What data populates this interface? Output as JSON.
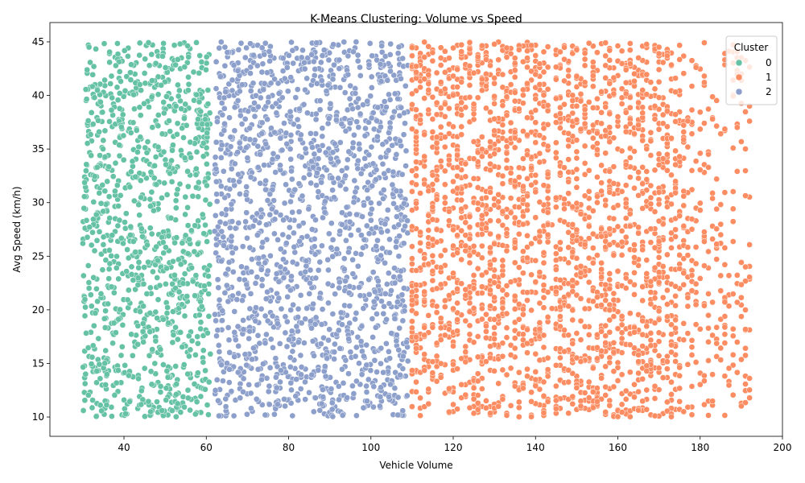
{
  "chart_data": {
    "type": "scatter",
    "title": "K-Means Clustering: Volume vs Speed",
    "xlabel": "Vehicle Volume",
    "ylabel": "Avg Speed (km/h)",
    "xlim": [
      22,
      200
    ],
    "ylim": [
      8.2,
      46.8
    ],
    "xticks": [
      40,
      60,
      80,
      100,
      120,
      140,
      160,
      180,
      200
    ],
    "yticks": [
      10,
      15,
      20,
      25,
      30,
      35,
      40,
      45
    ],
    "grid": false,
    "legend": {
      "title": "Cluster",
      "placement": "top-right"
    },
    "series": [
      {
        "name": "0",
        "color": "#66c2a5",
        "x_range": [
          30,
          61
        ],
        "y_range": [
          10,
          45
        ]
      },
      {
        "name": "2",
        "color": "#8da0cb",
        "x_range": [
          62,
          109
        ],
        "y_range": [
          10,
          45
        ]
      },
      {
        "name": "1",
        "color": "#fc8d62",
        "x_range": [
          110,
          192
        ],
        "y_range": [
          10,
          45
        ]
      }
    ],
    "legend_order": [
      "0",
      "1",
      "2"
    ]
  }
}
